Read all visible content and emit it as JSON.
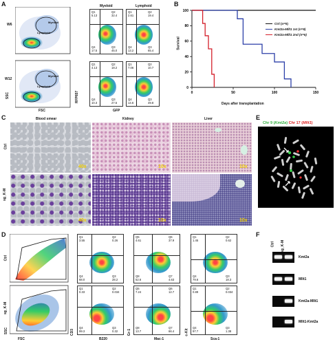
{
  "panels": {
    "a": "A",
    "b": "B",
    "c": "C",
    "d": "D",
    "e": "E",
    "f": "F"
  },
  "panel_a": {
    "row_labels": [
      "W6",
      "W12"
    ],
    "col_headers": [
      "Myeloid",
      "Lymphoid"
    ],
    "gate_labels": {
      "myeloid": "Myeloid",
      "lymphoid": "Lymphoid"
    },
    "axis": {
      "ssc": "SSC",
      "fsc": "FSC",
      "rfp": "RFP657",
      "gfp": "GFP"
    },
    "plots": [
      {
        "q1": "Q1\n5.13",
        "q2": "Q2\n32.4",
        "q4": "Q4\n17.5",
        "q3": "Q3\n45.0"
      },
      {
        "q1": "Q1\n2.61",
        "q2": "Q2\n19.4",
        "q4": "Q4\n13.2",
        "q3": "Q3\n65.4"
      },
      {
        "q1": "Q1\n4.13",
        "q2": "Q2\n18.2",
        "q4": "Q4\n10.3",
        "q3": "Q3\n27.5"
      },
      {
        "q1": "Q1\n7.06",
        "q2": "Q2\n10.7",
        "q4": "Q4\n14.6",
        "q3": "Q3\n49.8"
      }
    ]
  },
  "panel_b": {
    "ylabel": "Survival",
    "xlabel": "Days after transplantation",
    "legend": [
      {
        "label": "Ctrl (n=5)",
        "color": "#111111"
      },
      {
        "label": "Kmt2a-Mllt1 1st (n=9)",
        "color": "#2b3fa8"
      },
      {
        "label": "Kmt2a-Mllt1 2nd (n=6)",
        "color": "#d41f2a"
      }
    ]
  },
  "chart_data": {
    "type": "line",
    "xlabel": "Days after transplantation",
    "ylabel": "Survival",
    "xlim": [
      0,
      150
    ],
    "ylim": [
      0,
      100
    ],
    "xticks": [
      0,
      50,
      100,
      150
    ],
    "yticks": [
      0,
      20,
      40,
      60,
      80,
      100
    ],
    "series": [
      {
        "name": "Ctrl (n=5)",
        "color": "#111111",
        "x": [
          0,
          150
        ],
        "y": [
          100,
          100
        ]
      },
      {
        "name": "Kmt2a-Mllt1 1st (n=9)",
        "color": "#2b3fa8",
        "x": [
          0,
          55,
          55,
          62,
          62,
          85,
          85,
          100,
          100,
          112,
          112,
          120,
          120
        ],
        "y": [
          100,
          100,
          89,
          89,
          56,
          56,
          44,
          44,
          33,
          33,
          11,
          11,
          0
        ]
      },
      {
        "name": "Kmt2a-Mllt1 2nd (n=6)",
        "color": "#d41f2a",
        "x": [
          0,
          13,
          13,
          16,
          16,
          20,
          20,
          24,
          24,
          27,
          27
        ],
        "y": [
          100,
          100,
          83,
          83,
          67,
          67,
          50,
          50,
          17,
          17,
          0
        ]
      }
    ]
  },
  "panel_c": {
    "col_headers": [
      "Blood smear",
      "Kidney",
      "Liver"
    ],
    "row_labels": [
      "Ctrl",
      "sg_K-M"
    ],
    "mags": [
      "40x",
      "10x",
      "10x",
      "40x",
      "10x",
      "10x"
    ]
  },
  "panel_d": {
    "row_labels": [
      "Ctrl",
      "sg_K-M"
    ],
    "axis": {
      "ssc": "SSC",
      "fsc": "FSC",
      "cd3": "CD3",
      "b220": "B220",
      "gr1": "Gr-1",
      "mac1": "Mac-1",
      "ckit": "c-Kit",
      "sca1": "Sca-1"
    },
    "plots": [
      {
        "q1": "Q1\n3.55",
        "q2": "Q2\n0.26",
        "q4": "Q4\n68.0",
        "q3": "Q3\n28.2"
      },
      {
        "q1": "Q5\n4.61",
        "q2": "Q6\n37.9",
        "q4": "Q8\n52.6",
        "q3": "Q7\n4.63"
      },
      {
        "q1": "Q1\n1.45",
        "q2": "Q2\n0.62",
        "q4": "Q4\n79.6",
        "q3": "Q3\n18.3"
      },
      {
        "q1": "Q1\n0.33",
        "q2": "Q2\n0.034",
        "q4": "Q4\n99.3",
        "q3": "Q3\n0.32"
      },
      {
        "q1": "Q5\n7.24",
        "q2": "Q6\n12.7",
        "q4": "Q8\n13.7",
        "q3": "Q7\n66.4"
      },
      {
        "q1": "Q1\n0.89",
        "q2": "Q2\n0.034",
        "q4": "Q4\n97.7",
        "q3": "Q3\n1.38"
      }
    ]
  },
  "panel_e": {
    "chr9": "Chr 9 (",
    "gene9": "Kmt2a",
    "chr17": "Chr 17 (",
    "gene17": "Mllt1",
    "close": ")"
  },
  "panel_f": {
    "lanes": [
      "Ctrl",
      "sg_K-M"
    ],
    "genes": [
      "Kmt2a",
      "Mllt1",
      "Kmt2a-Mllt1",
      "Mllt1-Kmt2a"
    ]
  }
}
